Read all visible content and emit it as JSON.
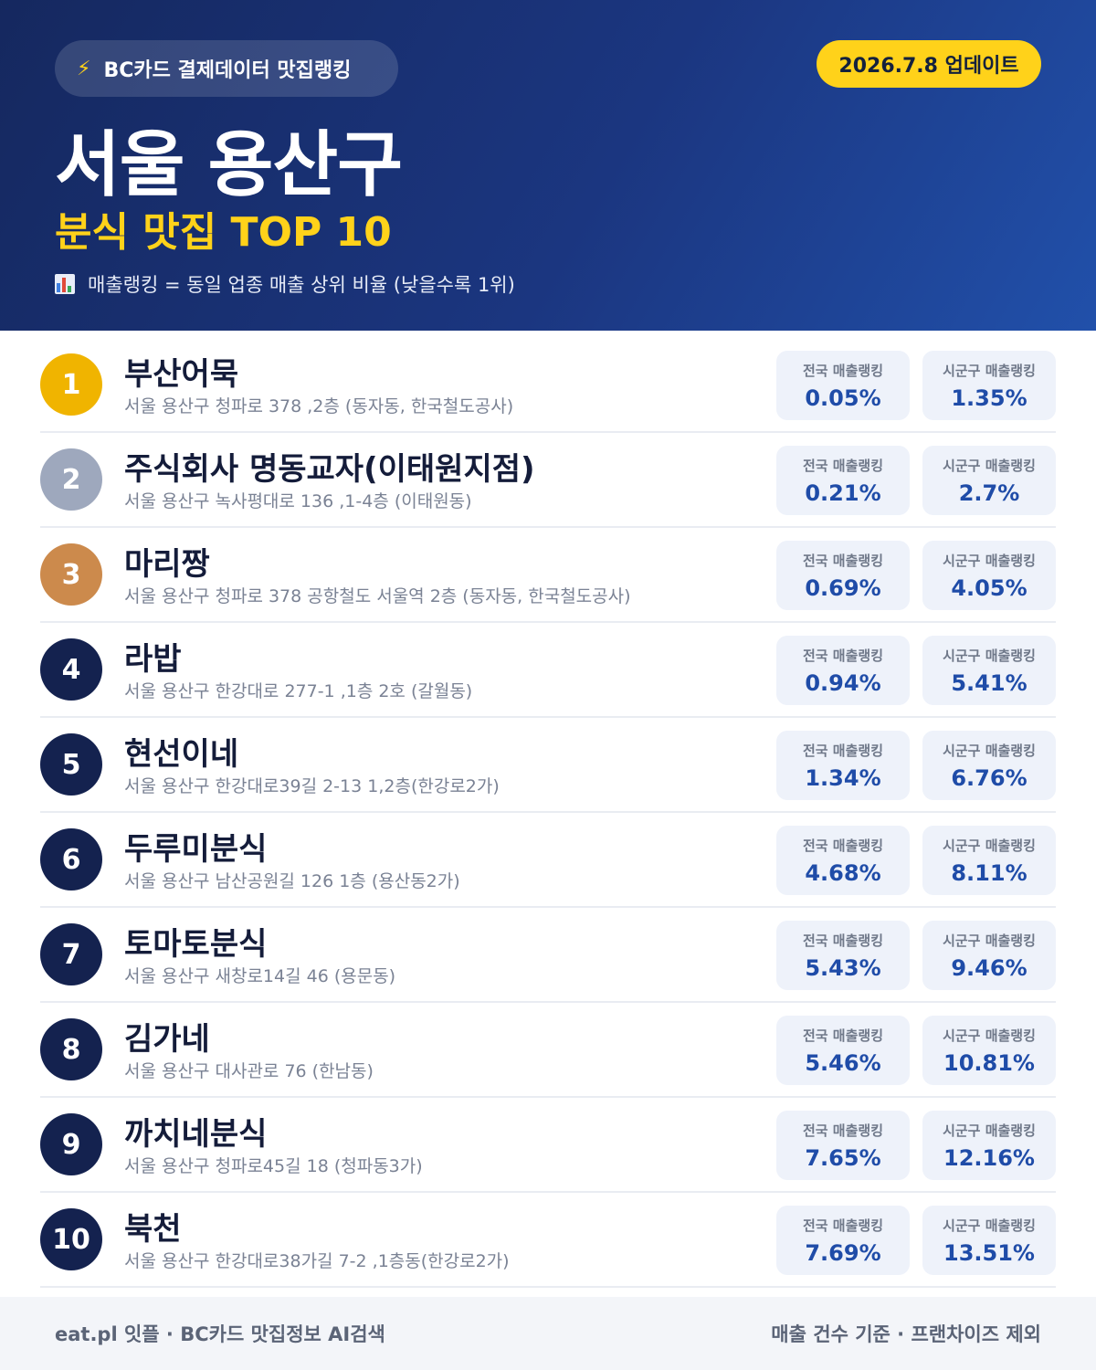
{
  "header": {
    "source_badge": "BC카드 결제데이터 맛집랭킹",
    "update_badge": "2026.7.8 업데이트",
    "title": "서울 용산구",
    "subtitle": "분식 맛집 TOP 10",
    "legend_note": "매출랭킹 = 동일 업종 매출 상위 비율 (낮을수록 1위)",
    "icons": {
      "source": "lightning-bolt-icon",
      "legend": "bar-chart-icon"
    }
  },
  "colors": {
    "header_gradient_start": "#15285f",
    "header_gradient_end": "#2150aa",
    "accent_yellow": "#ffd21a",
    "rank_gold": "#f0b400",
    "rank_silver": "#9ea8bd",
    "rank_bronze": "#cc8a4c",
    "rank_default": "#14224f",
    "stat_value": "#1f4ca8"
  },
  "stat_labels": {
    "national": "전국 매출랭킹",
    "district": "시군구 매출랭킹"
  },
  "restaurants": [
    {
      "rank": "1",
      "name": "부산어묵",
      "address": "서울 용산구 청파로 378 ,2층 (동자동, 한국철도공사)",
      "national": "0.05%",
      "district": "1.35%"
    },
    {
      "rank": "2",
      "name": "주식회사 명동교자(이태원지점)",
      "address": "서울 용산구 녹사평대로 136 ,1-4층 (이태원동)",
      "national": "0.21%",
      "district": "2.7%"
    },
    {
      "rank": "3",
      "name": "마리짱",
      "address": "서울 용산구 청파로 378 공항철도 서울역 2층 (동자동, 한국철도공사)",
      "national": "0.69%",
      "district": "4.05%"
    },
    {
      "rank": "4",
      "name": "라밥",
      "address": "서울 용산구 한강대로 277-1 ,1층 2호 (갈월동)",
      "national": "0.94%",
      "district": "5.41%"
    },
    {
      "rank": "5",
      "name": "현선이네",
      "address": "서울 용산구 한강대로39길 2-13 1,2층(한강로2가)",
      "national": "1.34%",
      "district": "6.76%"
    },
    {
      "rank": "6",
      "name": "두루미분식",
      "address": "서울 용산구 남산공원길 126 1층 (용산동2가)",
      "national": "4.68%",
      "district": "8.11%"
    },
    {
      "rank": "7",
      "name": "토마토분식",
      "address": "서울 용산구 새창로14길 46 (용문동)",
      "national": "5.43%",
      "district": "9.46%"
    },
    {
      "rank": "8",
      "name": "김가네",
      "address": "서울 용산구 대사관로 76 (한남동)",
      "national": "5.46%",
      "district": "10.81%"
    },
    {
      "rank": "9",
      "name": "까치네분식",
      "address": "서울 용산구 청파로45길 18 (청파동3가)",
      "national": "7.65%",
      "district": "12.16%"
    },
    {
      "rank": "10",
      "name": "북천",
      "address": "서울 용산구 한강대로38가길 7-2 ,1층동(한강로2가)",
      "national": "7.69%",
      "district": "13.51%"
    }
  ],
  "footer": {
    "left": "eat.pl 잇플 · BC카드 맛집정보 AI검색",
    "right": "매출 건수 기준 · 프랜차이즈 제외"
  }
}
